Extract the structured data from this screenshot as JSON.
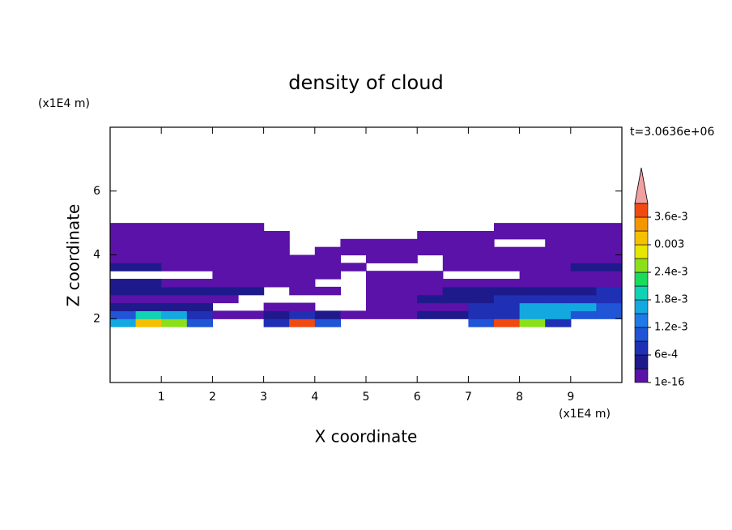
{
  "chart_data": {
    "type": "contour",
    "title": "density of cloud",
    "xlabel": "X coordinate",
    "ylabel": "Z coordinate",
    "x_unit": "(x1E4 m)",
    "y_unit": "(x1E4 m)",
    "annotation": "t=3.0636e+06",
    "xlim": [
      0,
      10
    ],
    "ylim": [
      0,
      8
    ],
    "xticks": [
      1,
      2,
      3,
      4,
      5,
      6,
      7,
      8,
      9
    ],
    "yticks": [
      2,
      4,
      6
    ],
    "x": [
      0.25,
      0.75,
      1.25,
      1.75,
      2.25,
      2.75,
      3.25,
      3.75,
      4.25,
      4.75,
      5.25,
      5.75,
      6.25,
      6.75,
      7.25,
      7.75,
      8.25,
      8.75,
      9.25,
      9.75
    ],
    "y": [
      1.875,
      2.125,
      2.375,
      2.625,
      2.875,
      3.125,
      3.375,
      3.625,
      3.875,
      4.125,
      4.375,
      4.625,
      4.875
    ],
    "z": [
      [
        0.0016,
        0.0031,
        0.0025,
        0.001,
        null,
        null,
        0.0007,
        0.0037,
        0.001,
        null,
        null,
        null,
        null,
        null,
        0.001,
        0.0037,
        0.0025,
        0.0007,
        null,
        null
      ],
      [
        0.001,
        0.002,
        0.0016,
        0.0007,
        1e-05,
        1e-05,
        0.0004,
        0.0007,
        0.0004,
        1e-05,
        1e-05,
        1e-05,
        0.0004,
        0.0004,
        0.0007,
        0.0007,
        0.0016,
        0.0016,
        0.001,
        0.001
      ],
      [
        0.0004,
        0.0004,
        0.0004,
        0.0004,
        null,
        null,
        1e-05,
        1e-05,
        null,
        null,
        1e-05,
        1e-05,
        1e-05,
        1e-05,
        0.0007,
        0.0007,
        0.0016,
        0.0016,
        0.0016,
        0.001
      ],
      [
        1e-05,
        1e-05,
        1e-05,
        1e-05,
        1e-05,
        null,
        null,
        null,
        null,
        null,
        1e-05,
        1e-05,
        0.0004,
        0.0004,
        0.0004,
        0.0007,
        0.0007,
        0.0007,
        0.0007,
        0.0007
      ],
      [
        0.0004,
        0.0004,
        0.0004,
        0.0004,
        0.0004,
        0.0004,
        null,
        1e-05,
        1e-05,
        null,
        1e-05,
        1e-05,
        1e-05,
        0.0004,
        0.0004,
        0.0004,
        0.0004,
        0.0004,
        0.0004,
        0.0007
      ],
      [
        0.0004,
        0.0004,
        1e-05,
        1e-05,
        1e-05,
        1e-05,
        1e-05,
        1e-05,
        null,
        null,
        1e-05,
        1e-05,
        1e-05,
        1e-05,
        1e-05,
        1e-05,
        1e-05,
        1e-05,
        1e-05,
        1e-05
      ],
      [
        null,
        null,
        null,
        null,
        1e-05,
        1e-05,
        1e-05,
        1e-05,
        1e-05,
        null,
        1e-05,
        1e-05,
        1e-05,
        null,
        null,
        null,
        1e-05,
        1e-05,
        1e-05,
        1e-05
      ],
      [
        0.0004,
        0.0004,
        1e-05,
        1e-05,
        1e-05,
        1e-05,
        1e-05,
        1e-05,
        1e-05,
        1e-05,
        null,
        null,
        null,
        1e-05,
        1e-05,
        1e-05,
        1e-05,
        1e-05,
        0.0004,
        0.0004
      ],
      [
        1e-05,
        1e-05,
        1e-05,
        1e-05,
        1e-05,
        1e-05,
        1e-05,
        1e-05,
        1e-05,
        null,
        1e-05,
        1e-05,
        null,
        1e-05,
        1e-05,
        1e-05,
        1e-05,
        1e-05,
        1e-05,
        1e-05
      ],
      [
        1e-05,
        1e-05,
        1e-05,
        1e-05,
        1e-05,
        1e-05,
        1e-05,
        null,
        1e-05,
        1e-05,
        1e-05,
        1e-05,
        1e-05,
        1e-05,
        1e-05,
        1e-05,
        1e-05,
        1e-05,
        1e-05,
        1e-05
      ],
      [
        1e-05,
        1e-05,
        1e-05,
        1e-05,
        1e-05,
        1e-05,
        1e-05,
        null,
        null,
        1e-05,
        1e-05,
        1e-05,
        1e-05,
        1e-05,
        1e-05,
        null,
        null,
        1e-05,
        1e-05,
        1e-05
      ],
      [
        1e-05,
        1e-05,
        1e-05,
        1e-05,
        1e-05,
        1e-05,
        1e-05,
        null,
        null,
        null,
        null,
        null,
        1e-05,
        1e-05,
        1e-05,
        1e-05,
        1e-05,
        1e-05,
        1e-05,
        1e-05
      ],
      [
        1e-05,
        1e-05,
        1e-05,
        1e-05,
        1e-05,
        1e-05,
        null,
        null,
        null,
        null,
        null,
        null,
        null,
        null,
        null,
        1e-05,
        1e-05,
        1e-05,
        1e-05,
        1e-05
      ]
    ],
    "levels": [
      1e-16,
      0.0003,
      0.0006,
      0.0009,
      0.0012,
      0.0015,
      0.0018,
      0.0021,
      0.0024,
      0.0027,
      0.003,
      0.0033,
      0.0036,
      0.0039
    ],
    "colors": [
      "#5a12a8",
      "#1e1a8c",
      "#1f30b4",
      "#1f55d6",
      "#1e7ae8",
      "#14a8e0",
      "#10d2b4",
      "#19dc5a",
      "#8ce01a",
      "#e6e600",
      "#f5c000",
      "#f59600",
      "#f04a10"
    ],
    "over_color": "#f0a0a0",
    "colorbar_ticks": [
      1e-16,
      {
        "value": 0.0006,
        "label": "6e-4"
      },
      {
        "value": 0.0012,
        "label": "1.2e-3"
      },
      {
        "value": 0.0018,
        "label": "1.8e-3"
      },
      {
        "value": 0.0024,
        "label": "2.4e-3"
      },
      0.003,
      {
        "value": 0.0036,
        "label": "3.6e-3"
      }
    ]
  }
}
